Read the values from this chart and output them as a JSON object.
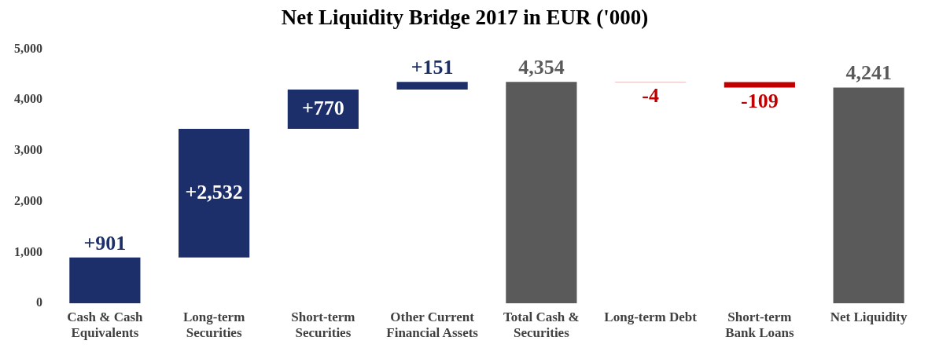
{
  "chart_data": {
    "type": "bar",
    "title": "Net Liquidity Bridge 2017 in EUR ('000)",
    "categories": [
      "Cash & Cash Equivalents",
      "Long-term Securities",
      "Short-term Securities",
      "Other Current Financial Assets",
      "Total Cash & Securities",
      "Long-term Debt",
      "Short-term Bank Loans",
      "Net Liquidity"
    ],
    "values": [
      901,
      2532,
      770,
      151,
      4354,
      -4,
      -109,
      4241
    ],
    "base": [
      0,
      901,
      3433,
      4203,
      0,
      4354,
      4350,
      0
    ],
    "colors": [
      "#1c2f6b",
      "#1c2f6b",
      "#1c2f6b",
      "#1c2f6b",
      "#5a5a5a",
      "#c00000",
      "#c00000",
      "#5a5a5a"
    ],
    "value_labels": [
      "+901",
      "+2,532",
      "+770",
      "+151",
      "4,354",
      "-4",
      "-109",
      "4,241"
    ],
    "ylim": [
      0,
      5000
    ],
    "yticks": [
      {
        "value": 0,
        "label": "0"
      },
      {
        "value": 1000,
        "label": "1,000"
      },
      {
        "value": 2000,
        "label": "2,000"
      },
      {
        "value": 3000,
        "label": "3,000"
      },
      {
        "value": 4000,
        "label": "4,000"
      },
      {
        "value": 5000,
        "label": "5,000"
      }
    ],
    "grid": false,
    "legend": false
  }
}
